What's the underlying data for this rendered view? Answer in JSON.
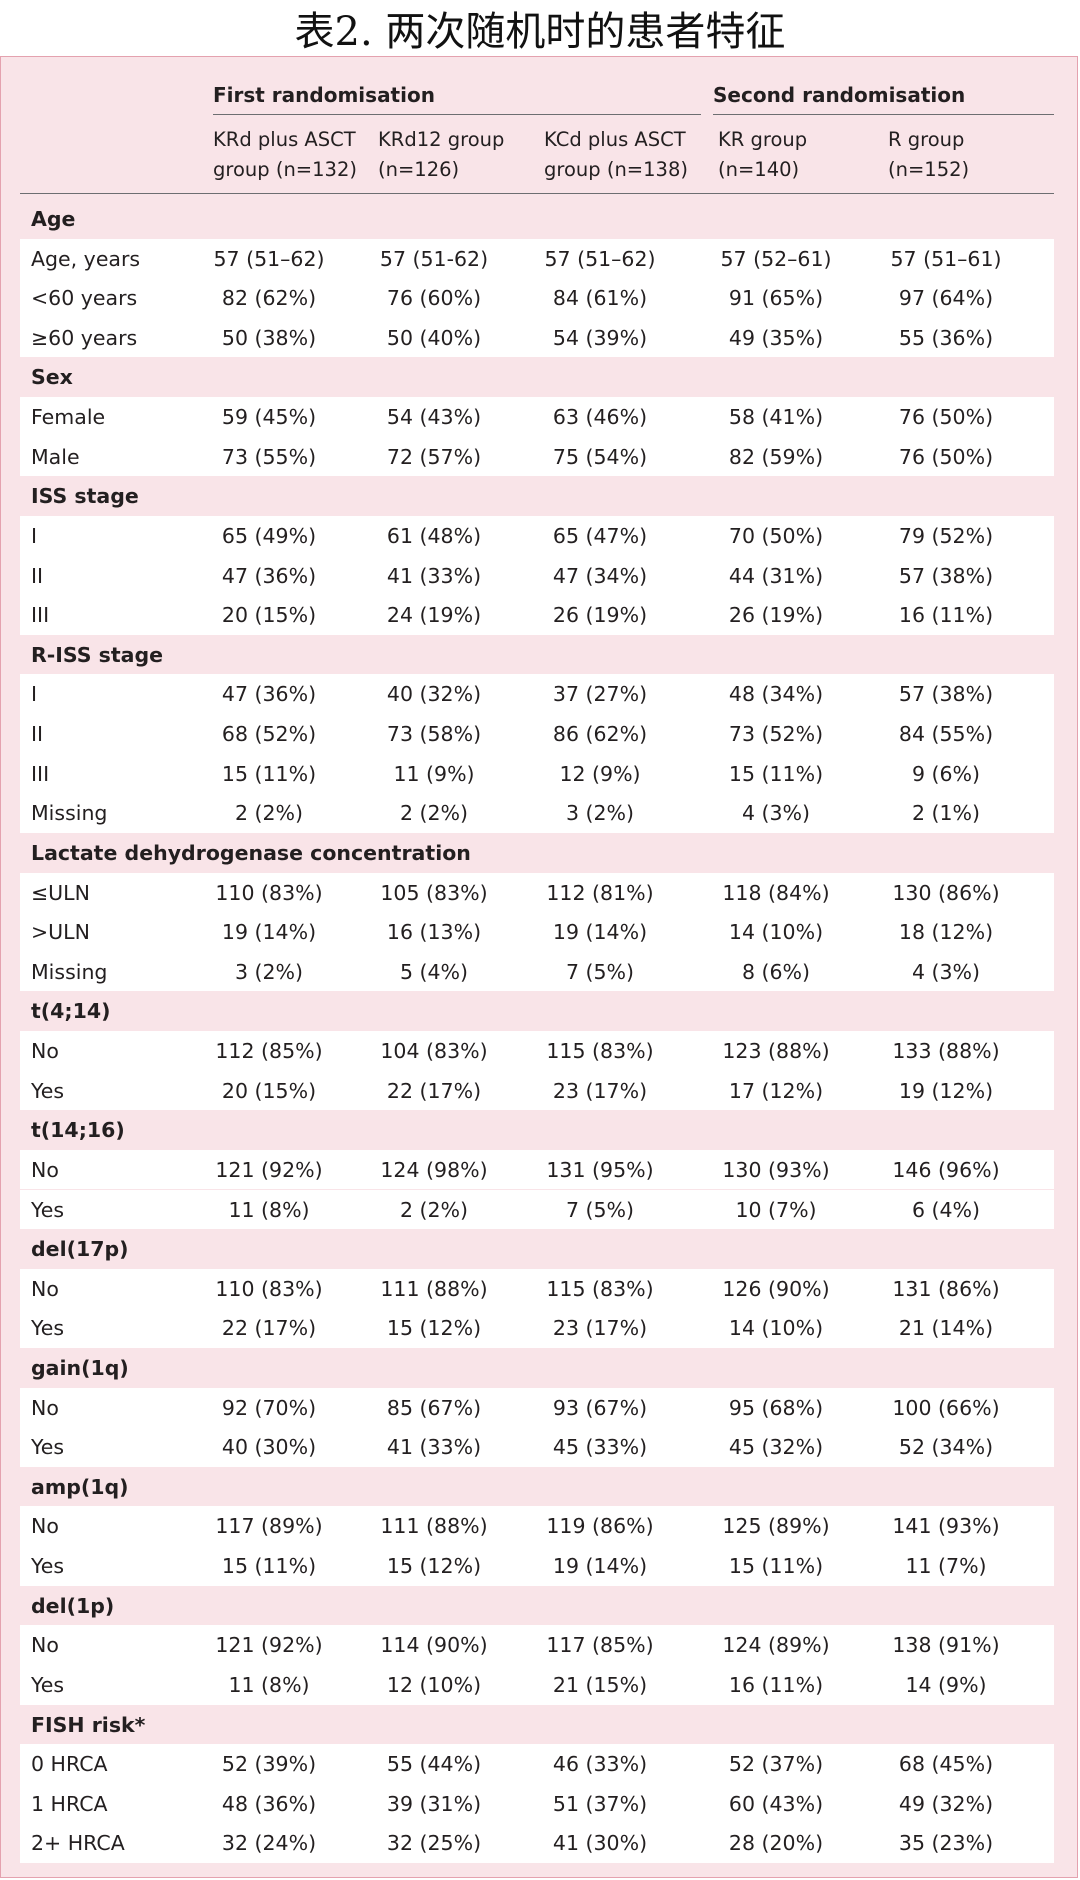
{
  "title": "表2. 两次随机时的患者特征",
  "header": {
    "first_randomisation": "First randomisation",
    "second_randomisation": "Second randomisation",
    "columns": [
      {
        "line1": "KRd plus ASCT",
        "line2": "group (n=132)"
      },
      {
        "line1": "KRd12 group",
        "line2": "(n=126)"
      },
      {
        "line1": "KCd plus ASCT",
        "line2": "group (n=138)"
      },
      {
        "line1": "KR group",
        "line2": "(n=140)"
      },
      {
        "line1": "R group",
        "line2": "(n=152)"
      }
    ]
  },
  "sections": [
    {
      "name": "Age",
      "rows": [
        {
          "label": "Age, years",
          "values": [
            "57 (51–62)",
            "57 (51-62)",
            "57 (51–62)",
            "57 (52–61)",
            "57 (51–61)"
          ]
        },
        {
          "label": "<60 years",
          "values": [
            "82 (62%)",
            "76 (60%)",
            "84 (61%)",
            "91 (65%)",
            "97 (64%)"
          ]
        },
        {
          "label": "≥60 years",
          "values": [
            "50 (38%)",
            "50 (40%)",
            "54 (39%)",
            "49 (35%)",
            "55 (36%)"
          ]
        }
      ]
    },
    {
      "name": "Sex",
      "rows": [
        {
          "label": "Female",
          "values": [
            "59 (45%)",
            "54 (43%)",
            "63 (46%)",
            "58 (41%)",
            "76 (50%)"
          ]
        },
        {
          "label": "Male",
          "values": [
            "73 (55%)",
            "72 (57%)",
            "75 (54%)",
            "82 (59%)",
            "76 (50%)"
          ]
        }
      ]
    },
    {
      "name": "ISS stage",
      "rows": [
        {
          "label": "I",
          "values": [
            "65 (49%)",
            "61 (48%)",
            "65 (47%)",
            "70 (50%)",
            "79 (52%)"
          ]
        },
        {
          "label": "II",
          "values": [
            "47 (36%)",
            "41 (33%)",
            "47 (34%)",
            "44 (31%)",
            "57 (38%)"
          ]
        },
        {
          "label": "III",
          "values": [
            "20 (15%)",
            "24 (19%)",
            "26 (19%)",
            "26 (19%)",
            "16 (11%)"
          ]
        }
      ]
    },
    {
      "name": "R-ISS stage",
      "rows": [
        {
          "label": "I",
          "values": [
            "47 (36%)",
            "40 (32%)",
            "37 (27%)",
            "48 (34%)",
            "57 (38%)"
          ]
        },
        {
          "label": "II",
          "values": [
            "68 (52%)",
            "73 (58%)",
            "86 (62%)",
            "73 (52%)",
            "84 (55%)"
          ]
        },
        {
          "label": "III",
          "values": [
            "15 (11%)",
            "11 (9%)",
            "12 (9%)",
            "15 (11%)",
            "9 (6%)"
          ]
        },
        {
          "label": "Missing",
          "values": [
            "2 (2%)",
            "2 (2%)",
            "3 (2%)",
            "4 (3%)",
            "2 (1%)"
          ]
        }
      ]
    },
    {
      "name": "Lactate dehydrogenase concentration",
      "rows": [
        {
          "label": "≤ULN",
          "values": [
            "110 (83%)",
            "105 (83%)",
            "112 (81%)",
            "118 (84%)",
            "130 (86%)"
          ]
        },
        {
          "label": ">ULN",
          "values": [
            "19 (14%)",
            "16 (13%)",
            "19 (14%)",
            "14 (10%)",
            "18 (12%)"
          ]
        },
        {
          "label": "Missing",
          "values": [
            "3 (2%)",
            "5 (4%)",
            "7 (5%)",
            "8 (6%)",
            "4 (3%)"
          ]
        }
      ]
    },
    {
      "name": "t(4;14)",
      "rows": [
        {
          "label": "No",
          "values": [
            "112 (85%)",
            "104 (83%)",
            "115 (83%)",
            "123 (88%)",
            "133 (88%)"
          ]
        },
        {
          "label": "Yes",
          "values": [
            "20 (15%)",
            "22 (17%)",
            "23 (17%)",
            "17 (12%)",
            "19 (12%)"
          ]
        }
      ]
    },
    {
      "name": "t(14;16)",
      "rows": [
        {
          "label": "No",
          "values": [
            "121 (92%)",
            "124 (98%)",
            "131 (95%)",
            "130 (93%)",
            "146 (96%)"
          ]
        },
        {
          "label": "Yes",
          "values": [
            "11 (8%)",
            "2 (2%)",
            "7 (5%)",
            "10 (7%)",
            "6 (4%)"
          ]
        }
      ]
    },
    {
      "name": "del(17p)",
      "rows": [
        {
          "label": "No",
          "values": [
            "110 (83%)",
            "111 (88%)",
            "115 (83%)",
            "126 (90%)",
            "131 (86%)"
          ]
        },
        {
          "label": "Yes",
          "values": [
            "22 (17%)",
            "15 (12%)",
            "23 (17%)",
            "14 (10%)",
            "21 (14%)"
          ]
        }
      ]
    },
    {
      "name": "gain(1q)",
      "rows": [
        {
          "label": "No",
          "values": [
            "92 (70%)",
            "85 (67%)",
            "93 (67%)",
            "95 (68%)",
            "100 (66%)"
          ]
        },
        {
          "label": "Yes",
          "values": [
            "40 (30%)",
            "41 (33%)",
            "45 (33%)",
            "45 (32%)",
            "52 (34%)"
          ]
        }
      ]
    },
    {
      "name": "amp(1q)",
      "rows": [
        {
          "label": "No",
          "values": [
            "117 (89%)",
            "111 (88%)",
            "119 (86%)",
            "125 (89%)",
            "141 (93%)"
          ]
        },
        {
          "label": "Yes",
          "values": [
            "15 (11%)",
            "15 (12%)",
            "19 (14%)",
            "15 (11%)",
            "11 (7%)"
          ]
        }
      ]
    },
    {
      "name": "del(1p)",
      "rows": [
        {
          "label": "No",
          "values": [
            "121 (92%)",
            "114 (90%)",
            "117 (85%)",
            "124 (89%)",
            "138 (91%)"
          ]
        },
        {
          "label": "Yes",
          "values": [
            "11 (8%)",
            "12 (10%)",
            "21 (15%)",
            "16 (11%)",
            "14 (9%)"
          ]
        }
      ]
    },
    {
      "name": "FISH risk*",
      "rows": [
        {
          "label": "0 HRCA",
          "values": [
            "52 (39%)",
            "55 (44%)",
            "46 (33%)",
            "52 (37%)",
            "68 (45%)"
          ]
        },
        {
          "label": "1 HRCA",
          "values": [
            "48 (36%)",
            "39 (31%)",
            "51 (37%)",
            "60 (43%)",
            "49 (32%)"
          ]
        },
        {
          "label": "2+ HRCA",
          "values": [
            "32 (24%)",
            "32 (25%)",
            "41 (30%)",
            "28 (20%)",
            "35 (23%)"
          ]
        }
      ]
    }
  ]
}
